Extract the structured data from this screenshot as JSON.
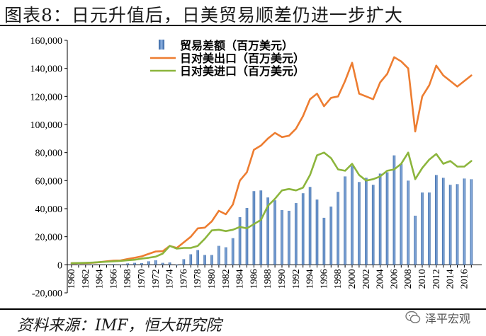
{
  "page_title": "图表8：日元升值后，日美贸易顺差仍进一步扩大",
  "source": "资料来源：IMF，恒大研究院",
  "watermark": "泽平宏观",
  "chart_data": {
    "type": "bar+line",
    "title": "图表8：日元升值后，日美贸易顺差仍进一步扩大",
    "xlabel": "",
    "ylabel": "",
    "ylim": [
      -20000,
      160000
    ],
    "yticks": [
      -20000,
      0,
      20000,
      40000,
      60000,
      80000,
      100000,
      120000,
      140000,
      160000
    ],
    "ytick_labels": [
      "-20,000",
      "0",
      "20,000",
      "40,000",
      "60,000",
      "80,000",
      "100,000",
      "120,000",
      "140,000",
      "160,000"
    ],
    "x": [
      1960,
      1961,
      1962,
      1963,
      1964,
      1965,
      1966,
      1967,
      1968,
      1969,
      1970,
      1971,
      1972,
      1973,
      1974,
      1975,
      1976,
      1977,
      1978,
      1979,
      1980,
      1981,
      1982,
      1983,
      1984,
      1985,
      1986,
      1987,
      1988,
      1989,
      1990,
      1991,
      1992,
      1993,
      1994,
      1995,
      1996,
      1997,
      1998,
      1999,
      2000,
      2001,
      2002,
      2003,
      2004,
      2005,
      2006,
      2007,
      2008,
      2009,
      2010,
      2011,
      2012,
      2013,
      2014,
      2015,
      2016,
      2017
    ],
    "xtick_labels": [
      "1960",
      "1962",
      "1964",
      "1966",
      "1968",
      "1970",
      "1972",
      "1974",
      "1976",
      "1978",
      "1980",
      "1982",
      "1984",
      "1986",
      "1988",
      "1990",
      "1992",
      "1994",
      "1996",
      "1998",
      "2000",
      "2002",
      "2004",
      "2006",
      "2008",
      "2010",
      "2012",
      "2014",
      "2016"
    ],
    "legend_position": "top-center",
    "series": [
      {
        "name": "贸易差额（百万美元）",
        "kind": "bar",
        "color": "#4a7ec4",
        "values": [
          0,
          -100,
          0,
          -200,
          0,
          300,
          500,
          200,
          1000,
          1400,
          1200,
          2500,
          3200,
          1400,
          1700,
          -500,
          4000,
          7500,
          10500,
          7000,
          7000,
          13500,
          12500,
          19000,
          34000,
          40500,
          52500,
          53000,
          48000,
          46000,
          39000,
          38500,
          44000,
          51000,
          55500,
          46500,
          33500,
          41500,
          52000,
          63000,
          70500,
          59000,
          62000,
          57000,
          65000,
          66000,
          78000,
          72000,
          60000,
          35000,
          51500,
          51500,
          64000,
          62000,
          57000,
          57500,
          61500,
          61000
        ]
      },
      {
        "name": "日对美出口（百万美元）",
        "kind": "line",
        "color": "#ed7d31",
        "values": [
          1200,
          1200,
          1300,
          1500,
          1900,
          2500,
          3000,
          3100,
          4100,
          5000,
          6000,
          7800,
          9500,
          9700,
          13500,
          12000,
          16000,
          20000,
          26000,
          26500,
          31000,
          38500,
          36000,
          43000,
          60000,
          66000,
          82000,
          85000,
          90000,
          94000,
          91000,
          92000,
          97000,
          106000,
          118000,
          122000,
          113000,
          119000,
          120000,
          131000,
          144000,
          122000,
          120000,
          118000,
          130000,
          136000,
          148000,
          145000,
          140000,
          95000,
          120000,
          128000,
          142000,
          135000,
          131000,
          127000,
          131000,
          135000
        ]
      },
      {
        "name": "日对美进口（百万美元）",
        "kind": "line",
        "color": "#8cb53c",
        "values": [
          1200,
          1300,
          1400,
          1600,
          1900,
          2200,
          2500,
          2800,
          3200,
          3600,
          4400,
          5000,
          5800,
          8000,
          13500,
          11500,
          12000,
          12000,
          13500,
          18500,
          24500,
          25000,
          24000,
          25000,
          27000,
          26000,
          29000,
          32000,
          42000,
          47000,
          53000,
          54000,
          53000,
          55000,
          64000,
          78000,
          80000,
          76000,
          68000,
          67000,
          72000,
          64000,
          60000,
          61000,
          63000,
          67000,
          68000,
          72000,
          80000,
          61000,
          69000,
          75000,
          79000,
          72000,
          74000,
          70000,
          70000,
          74000
        ]
      }
    ]
  }
}
